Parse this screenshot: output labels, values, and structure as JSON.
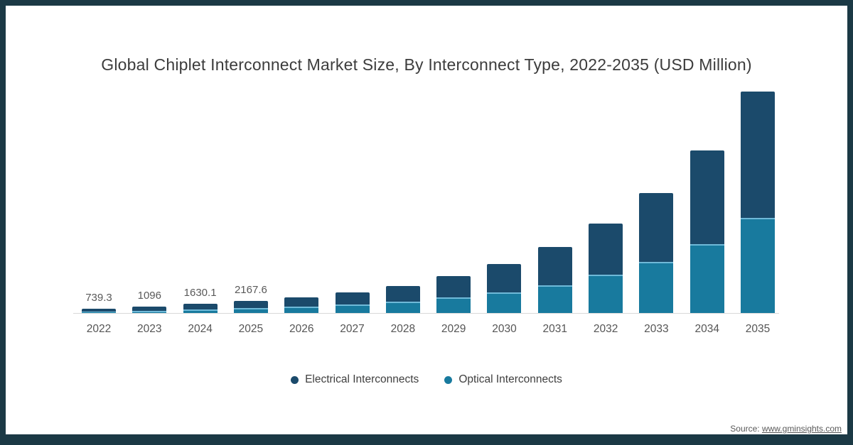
{
  "frame_color": "#1B3945",
  "title": "Global Chiplet Interconnect Market Size, By Interconnect Type, 2022-2035 (USD Million)",
  "source": {
    "prefix": "Source: ",
    "url": "www.gminsights.com"
  },
  "chart_data": {
    "type": "bar",
    "stacked": true,
    "title": "Global Chiplet Interconnect Market Size, By Interconnect Type, 2022-2035 (USD Million)",
    "unit": "USD Million",
    "categories": [
      "2022",
      "2023",
      "2024",
      "2025",
      "2026",
      "2027",
      "2028",
      "2029",
      "2030",
      "2031",
      "2032",
      "2033",
      "2034",
      "2035"
    ],
    "series": [
      {
        "name": "Electrical Interconnects",
        "color": "#1B4A6B",
        "values": [
          458.3,
          674,
          994.1,
          1311.6,
          1650,
          2170,
          2800,
          3800,
          5020,
          6730,
          9100,
          12130,
          16440,
          22230
        ]
      },
      {
        "name": "Optical Interconnects",
        "color": "#187A9E",
        "values": [
          281,
          422,
          636,
          856,
          1100,
          1480,
          1950,
          2700,
          3630,
          4870,
          6700,
          8970,
          12160,
          16770
        ]
      }
    ],
    "totals": [
      739.3,
      1096,
      1630.1,
      2167.6,
      2750,
      3650,
      4750,
      6500,
      8650,
      11600,
      15800,
      21100,
      28600,
      39000
    ],
    "data_labels": [
      "739.3",
      "1096",
      "1630.1",
      "2167.6",
      "",
      "",
      "",
      "",
      "",
      "",
      "",
      "",
      "",
      ""
    ],
    "ylim": [
      0,
      39900
    ],
    "grid": false,
    "x_axis_line_color": "#d9d9d9",
    "separator_color": "#6FB9D8",
    "legend_position": "bottom"
  }
}
